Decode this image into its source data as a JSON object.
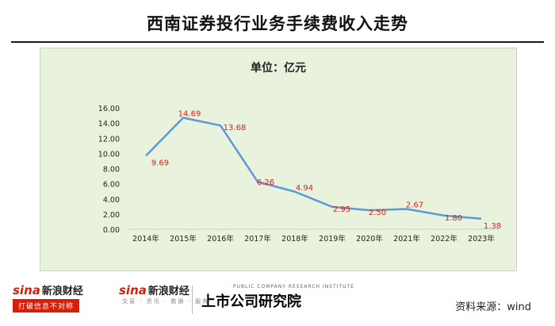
{
  "header": {
    "title": "西南证券投行业务手续费收入走势"
  },
  "chart_data": {
    "type": "line",
    "unit_label": "单位：亿元",
    "categories": [
      "2014年",
      "2015年",
      "2016年",
      "2017年",
      "2018年",
      "2019年",
      "2020年",
      "2021年",
      "2022年",
      "2023年"
    ],
    "series": [
      {
        "values": [
          9.69,
          14.69,
          13.68,
          6.26,
          4.94,
          2.95,
          2.5,
          2.67,
          1.8,
          1.38
        ],
        "labels": [
          "9.69",
          "14.69",
          "13.68",
          "6.26",
          "4.94",
          "2.95",
          "2.50",
          "2.67",
          "1.80",
          "1.38"
        ],
        "color": "#5b9bd5"
      }
    ],
    "y_ticks": [
      "0.00",
      "2.00",
      "4.00",
      "6.00",
      "8.00",
      "10.00",
      "12.00",
      "14.00",
      "16.00"
    ],
    "ylim": [
      0,
      16
    ],
    "grid": false,
    "label_color": "#e0201b",
    "plot_background": "#e9f2dd"
  },
  "footer": {
    "sina_brand": "sina",
    "sina_cn": "新浪财经",
    "sina_tagline": "打破信息不对称",
    "sina2_brand": "sina",
    "sina2_cn": "新浪财经",
    "sina2_sub": "交易 · 资讯 · 数据 · 服务",
    "research_small": "PUBLIC COMPANY RESEARCH INSTITUTE",
    "research_name": "上市公司研究院",
    "source": "资料来源：wind"
  }
}
